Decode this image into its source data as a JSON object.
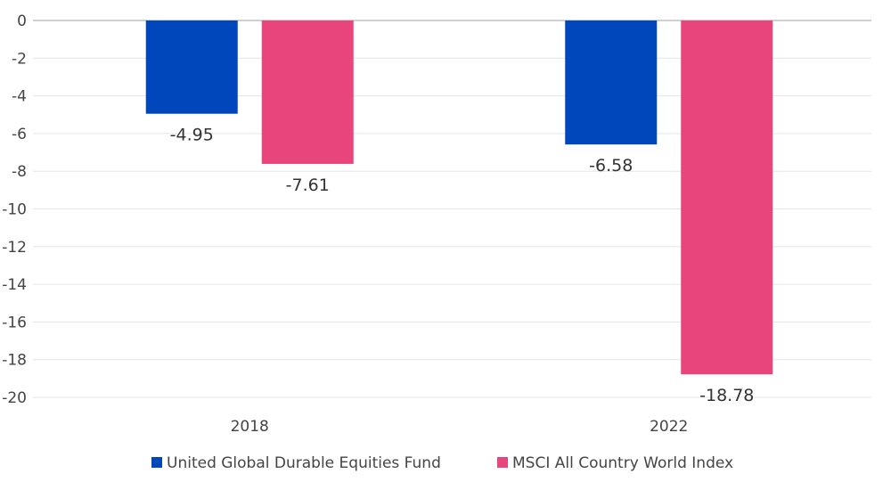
{
  "chart_data": {
    "type": "bar",
    "title": "",
    "xlabel": "",
    "ylabel": "",
    "categories": [
      "2018",
      "2022"
    ],
    "series": [
      {
        "name": "United Global Durable Equities Fund",
        "color": "#0047BB",
        "values": [
          -4.95,
          -6.58
        ],
        "labels": [
          "-4.95",
          "-6.58"
        ]
      },
      {
        "name": "MSCI All Country World Index",
        "color": "#E8457C",
        "values": [
          -7.61,
          -18.78
        ],
        "labels": [
          "-7.61",
          "-18.78"
        ]
      }
    ],
    "ylim": [
      -20,
      0
    ],
    "yticks": [
      0,
      -2,
      -4,
      -6,
      -8,
      -10,
      -12,
      -14,
      -16,
      -18,
      -20
    ],
    "ytick_labels": [
      "0",
      "-2",
      "-4",
      "-6",
      "-8",
      "-10",
      "-12",
      "-14",
      "-16",
      "-18",
      "-20"
    ],
    "grid": true,
    "legend_position": "bottom"
  }
}
